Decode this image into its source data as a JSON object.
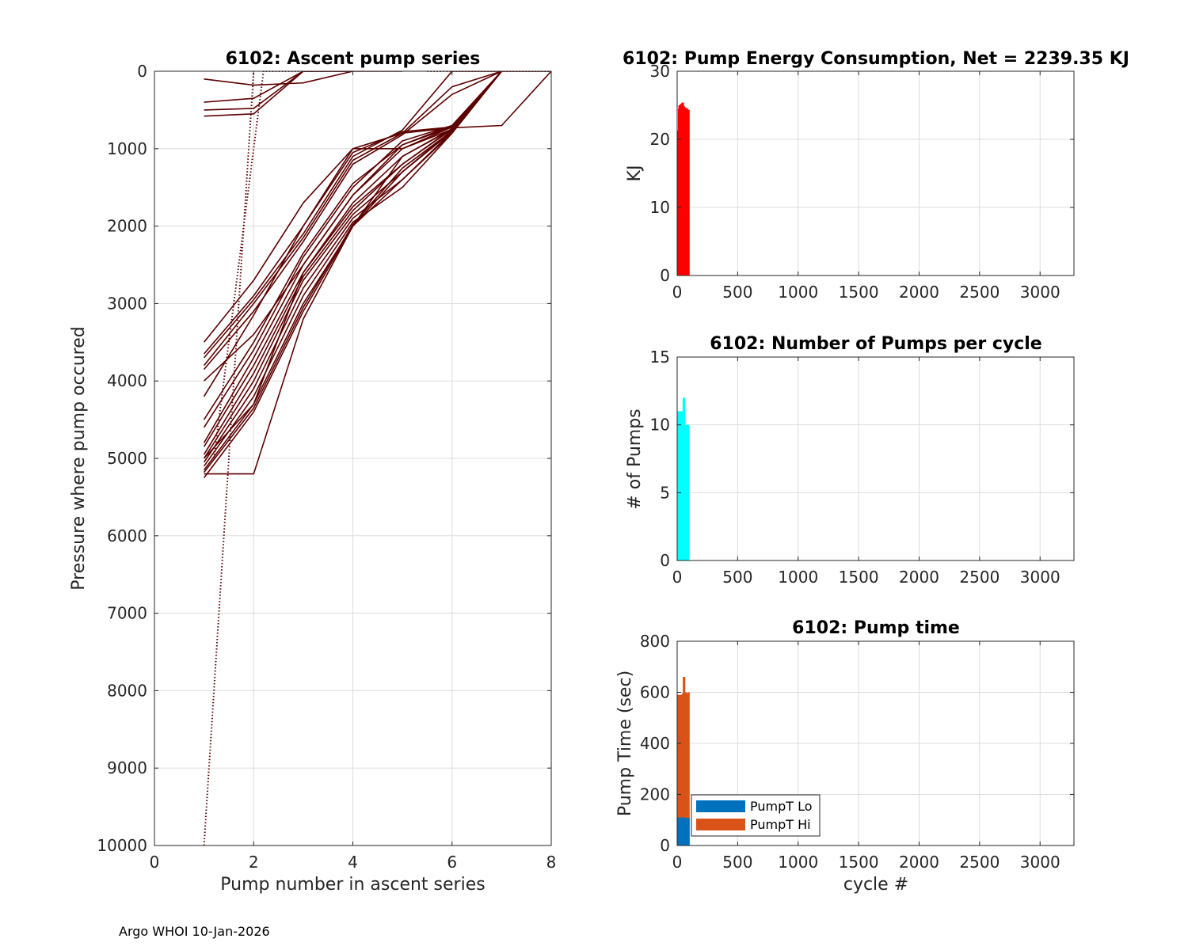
{
  "figure": {
    "footer": "Argo WHOI 10-Jan-2026"
  },
  "chart_data": [
    {
      "id": "ascent",
      "type": "line",
      "title": "6102: Ascent pump series",
      "xlabel": "Pump number in ascent series",
      "ylabel": "Pressure where pump occured",
      "xlim": [
        0,
        8
      ],
      "ylim": [
        0,
        10000
      ],
      "y_reversed": true,
      "xticks": [
        0,
        2,
        4,
        6,
        8
      ],
      "xtick_labels": [
        "0",
        "2",
        "4",
        "6",
        "8"
      ],
      "yticks": [
        0,
        1000,
        2000,
        3000,
        4000,
        5000,
        6000,
        7000,
        8000,
        9000,
        10000
      ],
      "ytick_labels": [
        "0",
        "1000",
        "2000",
        "3000",
        "4000",
        "5000",
        "6000",
        "7000",
        "8000",
        "9000",
        "10000"
      ],
      "grid": true,
      "color": "#5c0000",
      "series": [
        {
          "name": "s1",
          "x": [
            1,
            2,
            3,
            4,
            5,
            6,
            7,
            8
          ],
          "y": [
            3500,
            2700,
            1700,
            1000,
            800,
            730,
            700,
            0
          ]
        },
        {
          "name": "s2",
          "x": [
            1,
            2,
            3,
            4,
            5,
            6,
            7
          ],
          "y": [
            3650,
            2900,
            2000,
            1050,
            780,
            720,
            0
          ]
        },
        {
          "name": "s3",
          "x": [
            1,
            2,
            3,
            4,
            5,
            6,
            7
          ],
          "y": [
            3700,
            2950,
            2100,
            1100,
            760,
            0,
            0
          ]
        },
        {
          "name": "s4",
          "x": [
            1,
            2,
            3,
            4,
            5,
            6,
            7
          ],
          "y": [
            3800,
            3000,
            2150,
            1150,
            800,
            200,
            0
          ]
        },
        {
          "name": "s5",
          "x": [
            1,
            2,
            3,
            4,
            5,
            6,
            7
          ],
          "y": [
            3850,
            3100,
            2200,
            1200,
            820,
            300,
            0
          ]
        },
        {
          "name": "s6",
          "x": [
            1,
            2,
            3,
            4,
            5,
            6,
            7
          ],
          "y": [
            4200,
            3150,
            2000,
            1000,
            1000,
            750,
            0
          ]
        },
        {
          "name": "s7",
          "x": [
            1,
            2,
            3,
            4,
            5,
            6,
            7
          ],
          "y": [
            4500,
            3500,
            2350,
            1450,
            950,
            720,
            0
          ]
        },
        {
          "name": "s8",
          "x": [
            1,
            2,
            3,
            4,
            5,
            6,
            7
          ],
          "y": [
            4600,
            3600,
            2400,
            1500,
            900,
            700,
            0
          ]
        },
        {
          "name": "s9",
          "x": [
            1,
            2,
            3,
            4,
            5,
            6,
            7
          ],
          "y": [
            4800,
            3700,
            2500,
            1600,
            1000,
            720,
            0
          ]
        },
        {
          "name": "s10",
          "x": [
            1,
            2,
            3,
            4,
            5,
            6,
            7
          ],
          "y": [
            4850,
            3800,
            2600,
            1700,
            1100,
            740,
            0
          ]
        },
        {
          "name": "s11",
          "x": [
            1,
            2,
            3,
            4,
            5,
            6,
            7
          ],
          "y": [
            4950,
            3900,
            2650,
            1800,
            1200,
            750,
            0
          ]
        },
        {
          "name": "s12",
          "x": [
            1,
            2,
            3,
            4,
            5,
            6,
            7
          ],
          "y": [
            5000,
            4000,
            2700,
            1850,
            1300,
            760,
            0
          ]
        },
        {
          "name": "s13",
          "x": [
            1,
            2,
            3,
            4,
            5,
            6,
            7
          ],
          "y": [
            5050,
            4100,
            2800,
            1900,
            1400,
            780,
            0
          ]
        },
        {
          "name": "s14",
          "x": [
            1,
            2,
            3,
            4,
            5,
            6,
            7
          ],
          "y": [
            5100,
            4200,
            2900,
            1950,
            1500,
            800,
            0
          ]
        },
        {
          "name": "s15",
          "x": [
            1,
            2,
            3,
            4,
            5,
            6,
            7
          ],
          "y": [
            5150,
            4300,
            3000,
            2000,
            1100,
            750,
            0
          ]
        },
        {
          "name": "s16",
          "x": [
            1,
            2,
            3,
            4,
            5,
            6,
            7
          ],
          "y": [
            5250,
            4400,
            3100,
            2000,
            1300,
            780,
            0
          ]
        },
        {
          "name": "s17",
          "x": [
            1,
            2,
            3,
            4,
            5,
            6,
            7,
            8
          ],
          "y": [
            5200,
            5200,
            3200,
            2000,
            1400,
            800,
            0,
            0
          ]
        },
        {
          "name": "s18",
          "x": [
            1,
            2,
            3,
            4,
            5,
            6,
            7
          ],
          "y": [
            4000,
            3400,
            2500,
            1600,
            950,
            700,
            0
          ]
        },
        {
          "name": "s19",
          "x": [
            1,
            2,
            3,
            4,
            5,
            6,
            7
          ],
          "y": [
            5000,
            4300,
            2600,
            1750,
            1200,
            740,
            0
          ]
        },
        {
          "name": "s20",
          "x": [
            1,
            2,
            3,
            4,
            5,
            6,
            7
          ],
          "y": [
            5180,
            4350,
            3050,
            1980,
            1250,
            770,
            0
          ]
        },
        {
          "name": "s21",
          "x": [
            1,
            2,
            3,
            4,
            5
          ],
          "y": [
            100,
            180,
            150,
            0,
            0
          ]
        },
        {
          "name": "s22",
          "x": [
            1,
            2,
            3,
            4
          ],
          "y": [
            400,
            350,
            0,
            0
          ]
        },
        {
          "name": "s23",
          "x": [
            1,
            2,
            3,
            4
          ],
          "y": [
            500,
            480,
            0,
            0
          ]
        },
        {
          "name": "s24",
          "x": [
            1,
            2,
            3,
            4
          ],
          "y": [
            580,
            550,
            0,
            0
          ]
        },
        {
          "name": "dot1",
          "style": "dotted",
          "x": [
            1,
            2
          ],
          "y": [
            10000,
            0
          ]
        },
        {
          "name": "dot2",
          "style": "dotted",
          "x": [
            1.2,
            2.2,
            3.2
          ],
          "y": [
            5000,
            0,
            0
          ]
        },
        {
          "name": "dot3",
          "style": "dotted",
          "x": [
            5.5,
            6.5,
            7.5,
            8
          ],
          "y": [
            0,
            0,
            0,
            0
          ]
        }
      ]
    },
    {
      "id": "energy",
      "type": "bar",
      "title": "6102: Pump Energy Consumption,  Net = 2239.35 KJ",
      "xlabel": "",
      "ylabel": "KJ",
      "xlim": [
        0,
        3280
      ],
      "ylim": [
        0,
        30
      ],
      "xticks": [
        0,
        500,
        1000,
        1500,
        2000,
        2500,
        3000
      ],
      "xtick_labels": [
        "0",
        "500",
        "1000",
        "1500",
        "2000",
        "2500",
        "3000"
      ],
      "yticks": [
        0,
        10,
        20,
        30
      ],
      "ytick_labels": [
        "0",
        "10",
        "20",
        "30"
      ],
      "grid": true,
      "color": "#ff0000",
      "x": [
        1,
        5,
        9,
        13,
        17,
        21,
        25,
        29,
        33,
        37,
        41,
        45,
        49,
        53,
        57,
        61,
        65,
        69,
        73,
        77,
        81,
        85,
        89,
        93
      ],
      "values": [
        20.5,
        21.0,
        20.8,
        21.3,
        24.5,
        25.0,
        24.0,
        24.8,
        25.2,
        23.5,
        24.6,
        25.4,
        24.1,
        24.9,
        24.3,
        24.7,
        23.8,
        24.5,
        24.2,
        24.6,
        24.0,
        24.4,
        24.1,
        24.3
      ]
    },
    {
      "id": "numpumps",
      "type": "bar",
      "title": "6102: Number of Pumps per cycle",
      "xlabel": "",
      "ylabel": "# of Pumps",
      "xlim": [
        0,
        3280
      ],
      "ylim": [
        0,
        15
      ],
      "xticks": [
        0,
        500,
        1000,
        1500,
        2000,
        2500,
        3000
      ],
      "xtick_labels": [
        "0",
        "500",
        "1000",
        "1500",
        "2000",
        "2500",
        "3000"
      ],
      "yticks": [
        0,
        5,
        10,
        15
      ],
      "ytick_labels": [
        "0",
        "5",
        "10",
        "15"
      ],
      "grid": true,
      "color": "#00ffff",
      "x": [
        3,
        7,
        11,
        15,
        19,
        23,
        27,
        31,
        35,
        39,
        43,
        47,
        51,
        55,
        59,
        63,
        67,
        71,
        75,
        79,
        83,
        87,
        91
      ],
      "values": [
        11,
        11,
        10,
        11,
        11,
        11,
        10,
        11,
        10,
        10,
        11,
        10,
        10,
        12,
        10,
        10,
        10,
        10,
        10,
        10,
        3,
        10,
        10
      ]
    },
    {
      "id": "pumptime",
      "type": "bar",
      "title": "6102: Pump time",
      "xlabel": "cycle #",
      "ylabel": "Pump Time (sec)",
      "xlim": [
        0,
        3280
      ],
      "ylim": [
        0,
        800
      ],
      "xticks": [
        0,
        500,
        1000,
        1500,
        2000,
        2500,
        3000
      ],
      "xtick_labels": [
        "0",
        "500",
        "1000",
        "1500",
        "2000",
        "2500",
        "3000"
      ],
      "yticks": [
        0,
        200,
        400,
        600,
        800
      ],
      "ytick_labels": [
        "0",
        "200",
        "400",
        "600",
        "800"
      ],
      "grid": true,
      "legend_position": "bottom-left",
      "x": [
        1,
        5,
        9,
        13,
        17,
        21,
        25,
        29,
        33,
        37,
        41,
        45,
        49,
        53,
        57,
        61,
        65,
        69,
        73,
        77,
        81,
        85,
        89,
        93
      ],
      "series": [
        {
          "name": "PumpT Lo",
          "color": "#0072bd",
          "values": [
            95,
            100,
            105,
            110,
            100,
            105,
            110,
            98,
            104,
            108,
            102,
            106,
            100,
            104,
            110,
            106,
            100,
            104,
            108,
            102,
            106,
            100,
            104,
            108
          ]
        },
        {
          "name": "PumpT Hi",
          "color": "#d95319",
          "values": [
            580,
            585,
            590,
            575,
            580,
            585,
            590,
            580,
            585,
            590,
            580,
            590,
            595,
            585,
            660,
            590,
            580,
            600,
            585,
            590,
            595,
            585,
            590,
            600
          ]
        }
      ]
    }
  ]
}
